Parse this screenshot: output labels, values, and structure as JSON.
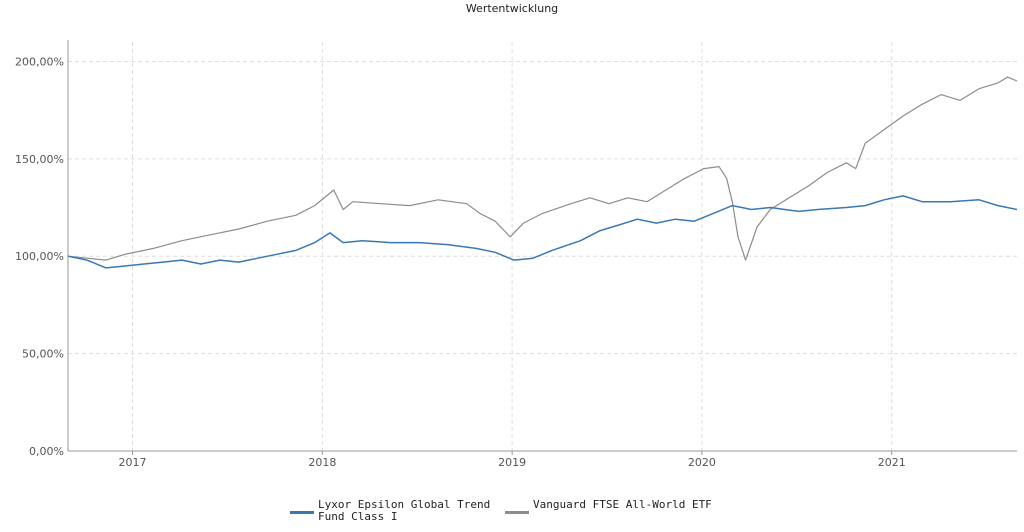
{
  "title": "Wertentwicklung",
  "colors": {
    "lyxor": "#3a78b5",
    "vanguard": "#8c8c8c",
    "grid": "#dddddd",
    "axis": "#999999"
  },
  "chart_data": {
    "type": "line",
    "title": "Wertentwicklung",
    "xlabel": "",
    "ylabel": "",
    "x_range": [
      2016.65,
      2021.65
    ],
    "ylim": [
      0,
      210
    ],
    "y_ticks": [
      0,
      50,
      100,
      150,
      200
    ],
    "y_tick_labels": [
      "0,00%",
      "50,00%",
      "100,00%",
      "150,00%",
      "200,00%"
    ],
    "x_ticks": [
      2016.99,
      2017.99,
      2018.99,
      2019.99,
      2020.99
    ],
    "x_tick_labels": [
      "2017",
      "2018",
      "2019",
      "2020",
      "2021"
    ],
    "grid": true,
    "legend_position": "bottom",
    "series": [
      {
        "name": "Lyxor Epsilon Global Trend Fund Class I",
        "color_key": "lyxor",
        "points": [
          [
            2016.65,
            100
          ],
          [
            2016.75,
            98
          ],
          [
            2016.85,
            94
          ],
          [
            2016.95,
            95
          ],
          [
            2017.05,
            96
          ],
          [
            2017.15,
            97
          ],
          [
            2017.25,
            98
          ],
          [
            2017.35,
            96
          ],
          [
            2017.45,
            98
          ],
          [
            2017.55,
            97
          ],
          [
            2017.65,
            99
          ],
          [
            2017.75,
            101
          ],
          [
            2017.85,
            103
          ],
          [
            2017.95,
            107
          ],
          [
            2018.03,
            112
          ],
          [
            2018.1,
            107
          ],
          [
            2018.2,
            108
          ],
          [
            2018.35,
            107
          ],
          [
            2018.5,
            107
          ],
          [
            2018.65,
            106
          ],
          [
            2018.8,
            104
          ],
          [
            2018.9,
            102
          ],
          [
            2019.0,
            98
          ],
          [
            2019.1,
            99
          ],
          [
            2019.2,
            103
          ],
          [
            2019.35,
            108
          ],
          [
            2019.45,
            113
          ],
          [
            2019.55,
            116
          ],
          [
            2019.65,
            119
          ],
          [
            2019.75,
            117
          ],
          [
            2019.85,
            119
          ],
          [
            2019.95,
            118
          ],
          [
            2020.05,
            122
          ],
          [
            2020.15,
            126
          ],
          [
            2020.2,
            125
          ],
          [
            2020.25,
            124
          ],
          [
            2020.35,
            125
          ],
          [
            2020.5,
            123
          ],
          [
            2020.6,
            124
          ],
          [
            2020.75,
            125
          ],
          [
            2020.85,
            126
          ],
          [
            2020.95,
            129
          ],
          [
            2021.05,
            131
          ],
          [
            2021.15,
            128
          ],
          [
            2021.3,
            128
          ],
          [
            2021.45,
            129
          ],
          [
            2021.55,
            126
          ],
          [
            2021.65,
            124
          ]
        ]
      },
      {
        "name": "Vanguard FTSE All-World ETF",
        "color_key": "vanguard",
        "points": [
          [
            2016.65,
            100
          ],
          [
            2016.75,
            99
          ],
          [
            2016.85,
            98
          ],
          [
            2016.95,
            101
          ],
          [
            2017.1,
            104
          ],
          [
            2017.25,
            108
          ],
          [
            2017.4,
            111
          ],
          [
            2017.55,
            114
          ],
          [
            2017.7,
            118
          ],
          [
            2017.85,
            121
          ],
          [
            2017.95,
            126
          ],
          [
            2018.05,
            134
          ],
          [
            2018.1,
            124
          ],
          [
            2018.15,
            128
          ],
          [
            2018.3,
            127
          ],
          [
            2018.45,
            126
          ],
          [
            2018.6,
            129
          ],
          [
            2018.75,
            127
          ],
          [
            2018.82,
            122
          ],
          [
            2018.9,
            118
          ],
          [
            2018.98,
            110
          ],
          [
            2019.05,
            117
          ],
          [
            2019.15,
            122
          ],
          [
            2019.3,
            127
          ],
          [
            2019.4,
            130
          ],
          [
            2019.5,
            127
          ],
          [
            2019.6,
            130
          ],
          [
            2019.7,
            128
          ],
          [
            2019.8,
            134
          ],
          [
            2019.9,
            140
          ],
          [
            2020.0,
            145
          ],
          [
            2020.08,
            146
          ],
          [
            2020.12,
            140
          ],
          [
            2020.15,
            128
          ],
          [
            2020.18,
            110
          ],
          [
            2020.22,
            98
          ],
          [
            2020.28,
            115
          ],
          [
            2020.35,
            124
          ],
          [
            2020.45,
            130
          ],
          [
            2020.55,
            136
          ],
          [
            2020.65,
            143
          ],
          [
            2020.75,
            148
          ],
          [
            2020.8,
            145
          ],
          [
            2020.85,
            158
          ],
          [
            2020.95,
            165
          ],
          [
            2021.05,
            172
          ],
          [
            2021.15,
            178
          ],
          [
            2021.25,
            183
          ],
          [
            2021.35,
            180
          ],
          [
            2021.45,
            186
          ],
          [
            2021.55,
            189
          ],
          [
            2021.6,
            192
          ],
          [
            2021.65,
            190
          ]
        ]
      }
    ]
  }
}
